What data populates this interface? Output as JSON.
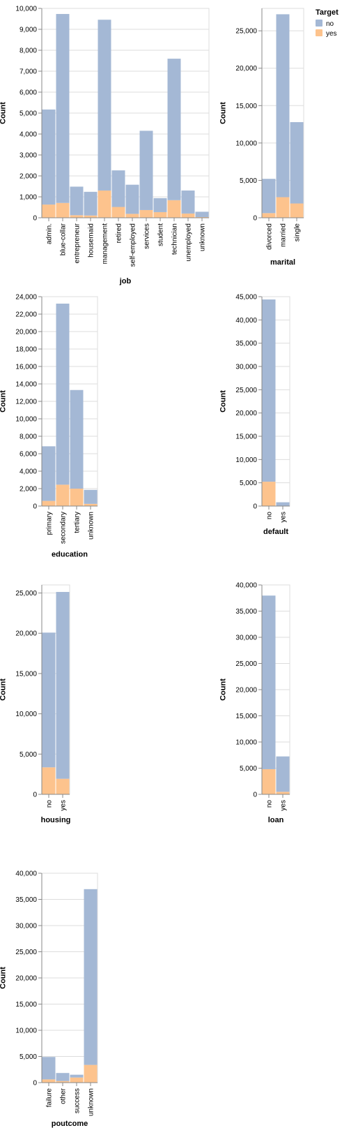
{
  "legend": {
    "title": "Target",
    "items": [
      {
        "label": "no",
        "color": "#a4b8d5"
      },
      {
        "label": "yes",
        "color": "#fdc38d"
      }
    ]
  },
  "chart_data": [
    {
      "type": "bar",
      "stacked": true,
      "xlabel": "job",
      "ylabel": "Count",
      "ylim": [
        0,
        10000
      ],
      "yticks": [
        0,
        1000,
        2000,
        3000,
        4000,
        5000,
        6000,
        7000,
        8000,
        9000,
        10000
      ],
      "categories": [
        "admin.",
        "blue-collar",
        "entrepreneur",
        "housemaid",
        "management",
        "retired",
        "self-employed",
        "services",
        "student",
        "technician",
        "unemployed",
        "unknown"
      ],
      "series": [
        {
          "name": "no",
          "values": [
            4540,
            9024,
            1364,
            1131,
            8157,
            1748,
            1392,
            3785,
            669,
            6757,
            1101,
            254
          ]
        },
        {
          "name": "yes",
          "values": [
            631,
            708,
            123,
            109,
            1301,
            516,
            187,
            369,
            269,
            840,
            202,
            34
          ]
        }
      ]
    },
    {
      "type": "bar",
      "stacked": true,
      "xlabel": "marital",
      "ylabel": "Count",
      "ylim": [
        0,
        28000
      ],
      "yticks": [
        0,
        5000,
        10000,
        15000,
        20000,
        25000
      ],
      "categories": [
        "divorced",
        "married",
        "single"
      ],
      "series": [
        {
          "name": "no",
          "values": [
            4585,
            24459,
            10878
          ]
        },
        {
          "name": "yes",
          "values": [
            622,
            2755,
            1912
          ]
        }
      ]
    },
    {
      "type": "bar",
      "stacked": true,
      "xlabel": "education",
      "ylabel": "Count",
      "ylim": [
        0,
        24000
      ],
      "yticks": [
        0,
        2000,
        4000,
        6000,
        8000,
        10000,
        12000,
        14000,
        16000,
        18000,
        20000,
        22000,
        24000
      ],
      "categories": [
        "primary",
        "secondary",
        "tertiary",
        "unknown"
      ],
      "series": [
        {
          "name": "no",
          "values": [
            6260,
            20752,
            11305,
            1605
          ]
        },
        {
          "name": "yes",
          "values": [
            591,
            2450,
            1996,
            252
          ]
        }
      ]
    },
    {
      "type": "bar",
      "stacked": true,
      "xlabel": "default",
      "ylabel": "Count",
      "ylim": [
        0,
        45000
      ],
      "yticks": [
        0,
        5000,
        10000,
        15000,
        20000,
        25000,
        30000,
        35000,
        40000,
        45000
      ],
      "categories": [
        "no",
        "yes"
      ],
      "series": [
        {
          "name": "no",
          "values": [
            39159,
            763
          ]
        },
        {
          "name": "yes",
          "values": [
            5237,
            52
          ]
        }
      ]
    },
    {
      "type": "bar",
      "stacked": true,
      "xlabel": "housing",
      "ylabel": "Count",
      "ylim": [
        0,
        26000
      ],
      "yticks": [
        0,
        5000,
        10000,
        15000,
        20000,
        25000
      ],
      "categories": [
        "no",
        "yes"
      ],
      "series": [
        {
          "name": "no",
          "values": [
            16727,
            23195
          ]
        },
        {
          "name": "yes",
          "values": [
            3354,
            1935
          ]
        }
      ]
    },
    {
      "type": "bar",
      "stacked": true,
      "xlabel": "loan",
      "ylabel": "Count",
      "ylim": [
        0,
        40000
      ],
      "yticks": [
        0,
        5000,
        10000,
        15000,
        20000,
        25000,
        30000,
        35000,
        40000
      ],
      "categories": [
        "no",
        "yes"
      ],
      "series": [
        {
          "name": "no",
          "values": [
            33162,
            6760
          ]
        },
        {
          "name": "yes",
          "values": [
            4805,
            484
          ]
        }
      ]
    },
    {
      "type": "bar",
      "stacked": true,
      "xlabel": "poutcome",
      "ylabel": "Count",
      "ylim": [
        0,
        40000
      ],
      "yticks": [
        0,
        5000,
        10000,
        15000,
        20000,
        25000,
        30000,
        35000,
        40000
      ],
      "categories": [
        "failure",
        "other",
        "success",
        "unknown"
      ],
      "series": [
        {
          "name": "no",
          "values": [
            4283,
            1533,
            533,
            33573
          ]
        },
        {
          "name": "yes",
          "values": [
            618,
            307,
            978,
            3386
          ]
        }
      ]
    }
  ]
}
